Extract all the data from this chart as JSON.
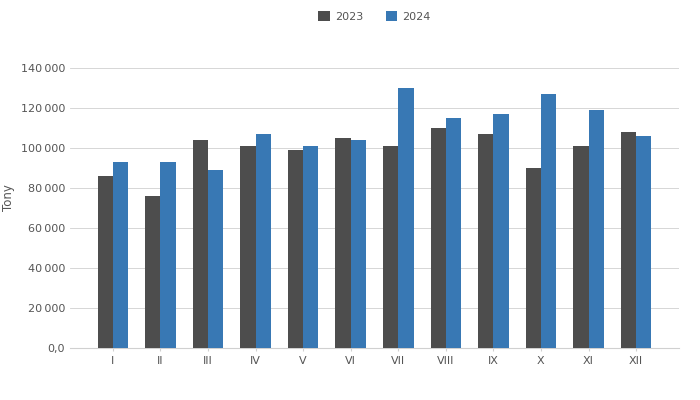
{
  "categories": [
    "I",
    "II",
    "III",
    "IV",
    "V",
    "VI",
    "VII",
    "VIII",
    "IX",
    "X",
    "XI",
    "XII"
  ],
  "values_2023": [
    86000,
    76000,
    104000,
    101000,
    99000,
    105000,
    101000,
    110000,
    107000,
    90000,
    101000,
    108000
  ],
  "values_2024": [
    93000,
    93000,
    89000,
    107000,
    101000,
    104000,
    130000,
    115000,
    117000,
    127000,
    119000,
    106000
  ],
  "color_2023": "#4d4d4d",
  "color_2024": "#3878b4",
  "ylabel": "Tony",
  "ylim": [
    0,
    150000
  ],
  "yticks": [
    0,
    20000,
    40000,
    60000,
    80000,
    100000,
    120000,
    140000
  ],
  "legend_labels": [
    "2023",
    "2024"
  ],
  "background_color": "#ffffff",
  "grid_color": "#d0d0d0",
  "bar_width": 0.32,
  "axis_fontsize": 8.5,
  "tick_fontsize": 8.0
}
